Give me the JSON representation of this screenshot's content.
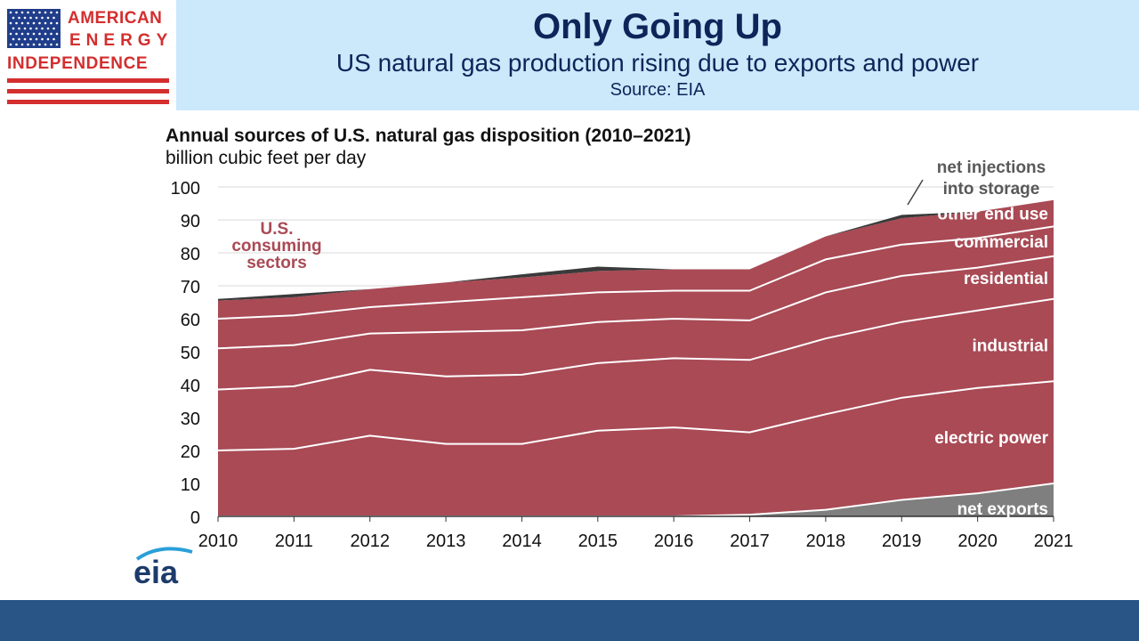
{
  "header": {
    "logo": {
      "line1": "AMERICAN",
      "line2": "ENERGY",
      "line3": "INDEPENDENCE"
    },
    "title": "Only Going Up",
    "subtitle": "US natural gas production rising due to exports and power",
    "source": "Source: EIA"
  },
  "colors": {
    "title_text": "#0d2559",
    "header_band": "#cce8fb",
    "sector_fill": "#a94a55",
    "exports_fill": "#7f7f7f",
    "storage_fill": "#3a3a3a",
    "logo_red": "#d42e2e",
    "footer_bar": "#285585"
  },
  "footer": {
    "brand": "eia"
  },
  "chart_data": {
    "type": "area",
    "stacked": true,
    "title": "Annual sources of U.S. natural gas disposition (2010–2021)",
    "ylabel": "billion cubic feet per day",
    "xlabel": "",
    "x": [
      2010,
      2011,
      2012,
      2013,
      2014,
      2015,
      2016,
      2017,
      2018,
      2019,
      2020,
      2021
    ],
    "ylim": [
      0,
      100
    ],
    "yticks": [
      0,
      10,
      20,
      30,
      40,
      50,
      60,
      70,
      80,
      90,
      100
    ],
    "grid": true,
    "series": [
      {
        "name": "net exports",
        "values": [
          0,
          0,
          0,
          0,
          0,
          0,
          0,
          0.5,
          2,
          5,
          7,
          10
        ]
      },
      {
        "name": "electric power",
        "values": [
          20,
          20.5,
          24.5,
          22,
          22,
          26,
          27,
          25,
          29,
          31,
          32,
          31
        ]
      },
      {
        "name": "industrial",
        "values": [
          18.5,
          19,
          20,
          20.5,
          21,
          20.5,
          21,
          22,
          23,
          23,
          23.5,
          25
        ]
      },
      {
        "name": "residential",
        "values": [
          12.5,
          12.5,
          11,
          13.5,
          13.5,
          12.5,
          12,
          12,
          14,
          14,
          13,
          13
        ]
      },
      {
        "name": "commercial",
        "values": [
          9,
          9,
          8,
          9,
          10,
          9,
          8.5,
          9,
          10,
          9.5,
          9,
          9
        ]
      },
      {
        "name": "other end use",
        "values": [
          5.5,
          5.5,
          5.5,
          6,
          6,
          6.5,
          6.5,
          6.5,
          7,
          8,
          8,
          8
        ]
      },
      {
        "name": "net injections into storage",
        "values": [
          0.5,
          1,
          0,
          0,
          1,
          1.3,
          0,
          0,
          0,
          1,
          0,
          0
        ]
      }
    ],
    "annotations": {
      "sector_group": "U.S. consuming sectors",
      "storage_label": [
        "net injections",
        "into storage"
      ]
    }
  }
}
